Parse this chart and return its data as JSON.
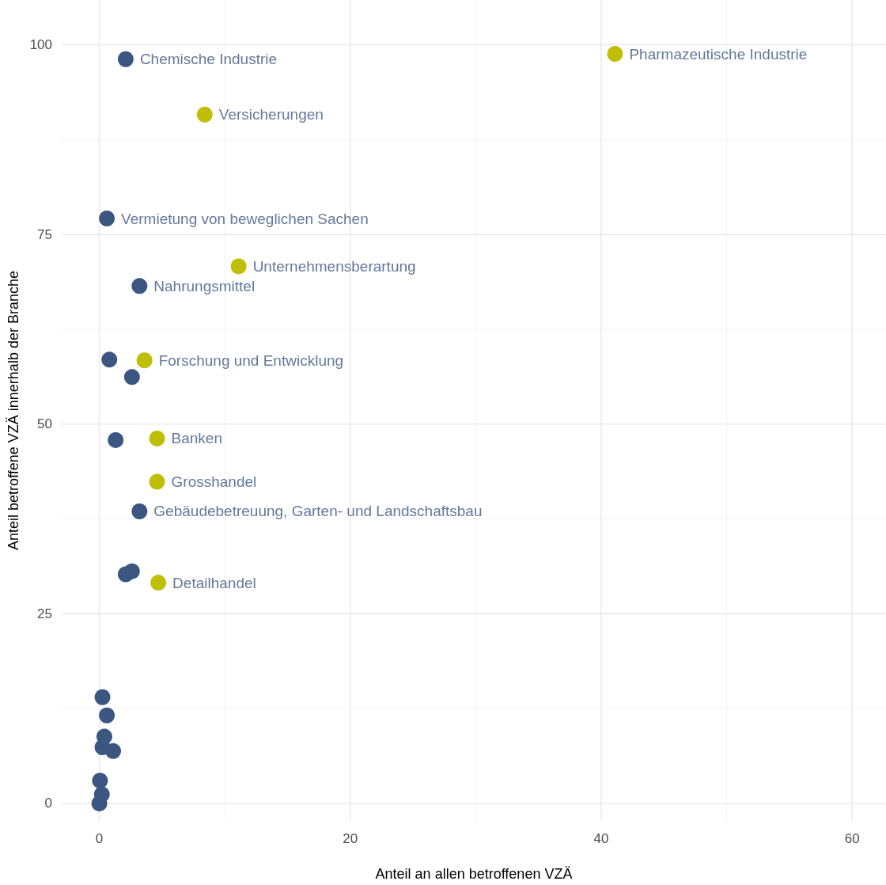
{
  "chart_data": {
    "type": "scatter",
    "xlabel": "Anteil an allen betroffenen VZÄ",
    "ylabel": "Anteil betroffene VZÄ innerhalb der Branche",
    "xlim": [
      -3,
      62.7
    ],
    "ylim": [
      -2.3,
      105.9
    ],
    "xticks": [
      0,
      {
        "value": 10,
        "label": null
      },
      20,
      {
        "value": 30,
        "label": null
      },
      40,
      {
        "value": 50,
        "label": null
      },
      60
    ],
    "yticks": [
      0,
      {
        "value": 12.5,
        "label": null
      },
      25,
      {
        "value": 37.5,
        "label": null
      },
      50,
      {
        "value": 62.5,
        "label": null
      },
      75,
      {
        "value": 87.5,
        "label": null
      },
      100
    ],
    "grid": true,
    "marker": "circle",
    "series": [
      {
        "color": "#3b5681",
        "x": [
          2.1,
          0.6,
          3.2,
          3.2,
          0.8,
          2.6,
          1.3,
          2.6,
          2.1,
          0.25,
          0.6,
          0.4,
          0.25,
          1.1,
          0.05,
          0.2,
          0
        ],
        "values": [
          98.1,
          77.1,
          68.2,
          38.5,
          58.5,
          56.2,
          47.9,
          30.6,
          30.2,
          14.0,
          11.6,
          8.8,
          7.4,
          6.9,
          3.0,
          1.2,
          0
        ]
      },
      {
        "color": "#bfbf0a",
        "x": [
          41.1,
          8.4,
          11.1,
          3.6,
          4.6,
          4.6,
          4.7
        ],
        "values": [
          98.8,
          90.8,
          70.8,
          58.4,
          48.1,
          42.4,
          29.1
        ]
      }
    ],
    "annotations": [
      {
        "text": "Chemische Industrie",
        "x": 2.1,
        "y": 98.1
      },
      {
        "text": "Vermietung von beweglichen Sachen",
        "x": 0.6,
        "y": 77.1
      },
      {
        "text": "Nahrungsmittel",
        "x": 3.2,
        "y": 68.2
      },
      {
        "text": "Gebäudebetreuung, Garten- und Landschaftsbau",
        "x": 3.2,
        "y": 38.5
      },
      {
        "text": "Pharmazeutische Industrie",
        "x": 41.1,
        "y": 98.8
      },
      {
        "text": "Versicherungen",
        "x": 8.4,
        "y": 90.8
      },
      {
        "text": "Unternehmensberartung",
        "x": 11.1,
        "y": 70.8
      },
      {
        "text": "Forschung und Entwicklung",
        "x": 3.6,
        "y": 58.4
      },
      {
        "text": "Banken",
        "x": 4.6,
        "y": 48.1
      },
      {
        "text": "Grosshandel",
        "x": 4.6,
        "y": 42.4
      },
      {
        "text": "Detailhandel",
        "x": 4.7,
        "y": 29.1
      }
    ]
  }
}
